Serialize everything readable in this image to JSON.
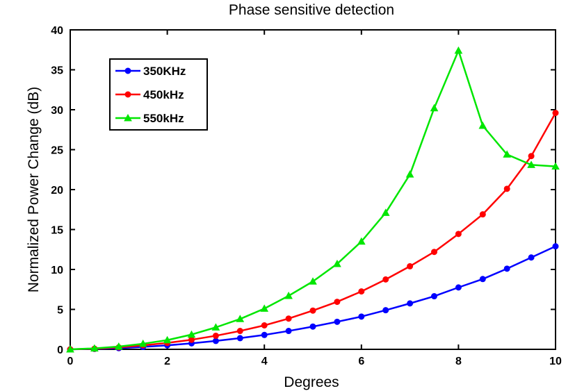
{
  "chart_data": {
    "type": "line",
    "title": "Phase sensitive detection",
    "xlabel": "Degrees",
    "ylabel": "Normalized Power Change (dB)",
    "xlim": [
      0,
      10
    ],
    "ylim": [
      0,
      40
    ],
    "xticks": [
      0,
      2,
      4,
      6,
      8,
      10
    ],
    "yticks": [
      0,
      5,
      10,
      15,
      20,
      25,
      30,
      35,
      40
    ],
    "grid": false,
    "legend_position": "top-left",
    "x": [
      0,
      0.5,
      1,
      1.5,
      2,
      2.5,
      3,
      3.5,
      4,
      4.5,
      5,
      5.5,
      6,
      6.5,
      7,
      7.5,
      8,
      8.5,
      9,
      9.5,
      10
    ],
    "series": [
      {
        "name": "350KHz",
        "color": "#0000ff",
        "marker": "circle",
        "values": [
          0,
          0.05,
          0.15,
          0.3,
          0.5,
          0.75,
          1.05,
          1.4,
          1.8,
          2.3,
          2.85,
          3.45,
          4.1,
          4.9,
          5.75,
          6.65,
          7.75,
          8.8,
          10.1,
          11.5,
          12.9
        ]
      },
      {
        "name": "450kHz",
        "color": "#ff0000",
        "marker": "circle",
        "values": [
          0,
          0.08,
          0.25,
          0.5,
          0.8,
          1.2,
          1.7,
          2.3,
          3.0,
          3.85,
          4.85,
          5.95,
          7.25,
          8.75,
          10.4,
          12.2,
          14.45,
          16.9,
          20.1,
          24.2,
          29.6
        ]
      },
      {
        "name": "550kHz",
        "color": "#00e600",
        "marker": "triangle",
        "values": [
          0,
          0.12,
          0.35,
          0.7,
          1.15,
          1.85,
          2.75,
          3.8,
          5.1,
          6.7,
          8.5,
          10.7,
          13.5,
          17.1,
          21.9,
          30.2,
          37.4,
          28.0,
          24.4,
          23.1,
          22.9
        ]
      }
    ]
  }
}
